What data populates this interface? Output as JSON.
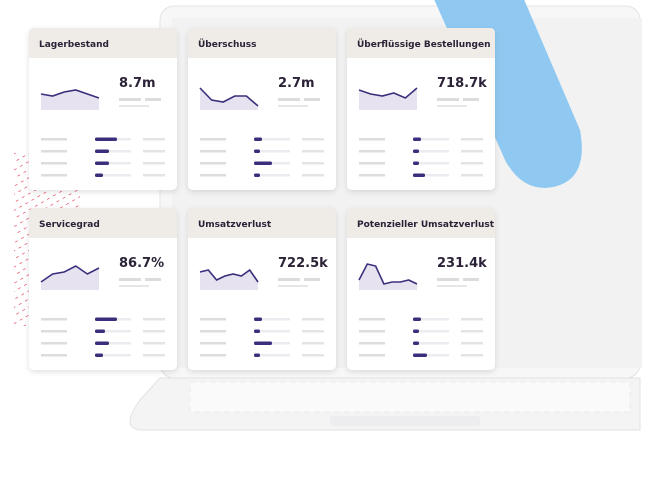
{
  "cards": [
    {
      "title": "Lagerbestand",
      "value": "8.7m"
    },
    {
      "title": "Überschuss",
      "value": "2.7m"
    },
    {
      "title": "Überflüssige Bestellungen",
      "value": "718.7k"
    },
    {
      "title": "Servicegrad",
      "value": "86.7%"
    },
    {
      "title": "Umsatzverlust",
      "value": "722.5k"
    },
    {
      "title": "Potenzieller Umsatzverlust",
      "value": "231.4k"
    }
  ]
}
